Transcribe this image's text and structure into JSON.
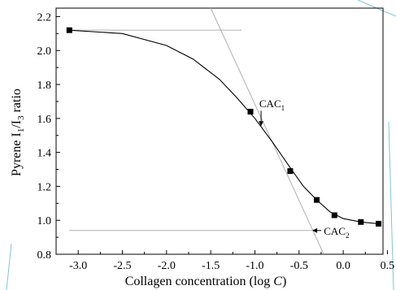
{
  "chart_data": {
    "type": "scatter",
    "xlabel_text": "Collagen concentration (log ",
    "xlabel_var": "C",
    "xlabel_close": ")",
    "ylabel_parts": [
      "Pyrene I",
      "1",
      "/I",
      "3",
      " ratio"
    ],
    "xlim": [
      -3.25,
      0.45
    ],
    "ylim": [
      0.8,
      2.25
    ],
    "x_ticks": [
      -3.0,
      -2.5,
      -2.0,
      -1.5,
      -1.0,
      -0.5,
      0.0,
      0.5
    ],
    "x_tick_labels": [
      "-3.0",
      "-2.5",
      "-2.0",
      "-1.5",
      "-1.0",
      "-0.5",
      "0.0",
      "0.5"
    ],
    "y_ticks": [
      0.8,
      1.0,
      1.2,
      1.4,
      1.6,
      1.8,
      2.0,
      2.2
    ],
    "y_tick_labels": [
      "0.8",
      "1.0",
      "1.2",
      "1.4",
      "1.6",
      "1.8",
      "2.0",
      "2.2"
    ],
    "points": [
      {
        "x": -3.1,
        "y": 2.12
      },
      {
        "x": -1.05,
        "y": 1.64
      },
      {
        "x": -0.6,
        "y": 1.29
      },
      {
        "x": -0.3,
        "y": 1.12
      },
      {
        "x": -0.1,
        "y": 1.03
      },
      {
        "x": 0.2,
        "y": 0.99
      },
      {
        "x": 0.4,
        "y": 0.98
      }
    ],
    "fit_curve": [
      {
        "x": -3.1,
        "y": 2.12
      },
      {
        "x": -2.5,
        "y": 2.1
      },
      {
        "x": -2.0,
        "y": 2.03
      },
      {
        "x": -1.7,
        "y": 1.95
      },
      {
        "x": -1.4,
        "y": 1.83
      },
      {
        "x": -1.2,
        "y": 1.72
      },
      {
        "x": -1.0,
        "y": 1.6
      },
      {
        "x": -0.8,
        "y": 1.46
      },
      {
        "x": -0.6,
        "y": 1.31
      },
      {
        "x": -0.45,
        "y": 1.2
      },
      {
        "x": -0.3,
        "y": 1.12
      },
      {
        "x": -0.15,
        "y": 1.05
      },
      {
        "x": 0.0,
        "y": 1.01
      },
      {
        "x": 0.2,
        "y": 0.99
      },
      {
        "x": 0.4,
        "y": 0.98
      }
    ],
    "upper_baseline": {
      "x1": -3.1,
      "x2": -1.15,
      "y": 2.12
    },
    "lower_baseline": {
      "x1": -3.1,
      "x2": -0.3,
      "y": 0.94
    },
    "tangent": {
      "x1": -1.5,
      "y1": 2.25,
      "x2": -0.22,
      "y2": 0.8
    },
    "annotations": [
      {
        "id": "cac1",
        "label": "CAC",
        "sub": "1",
        "x": -0.95,
        "y": 1.665,
        "arrow_to": {
          "x": -0.93,
          "y": 1.555
        }
      },
      {
        "id": "cac2",
        "label": "CAC",
        "sub": "2",
        "x": -0.22,
        "y": 0.915,
        "arrow_to": {
          "x": -0.35,
          "y": 0.94
        }
      }
    ],
    "colors": {
      "points": "#000000",
      "curve": "#000000",
      "guides": "#b0b0b0",
      "axes": "#000000",
      "frame_accent": "#7ec4d8"
    }
  }
}
